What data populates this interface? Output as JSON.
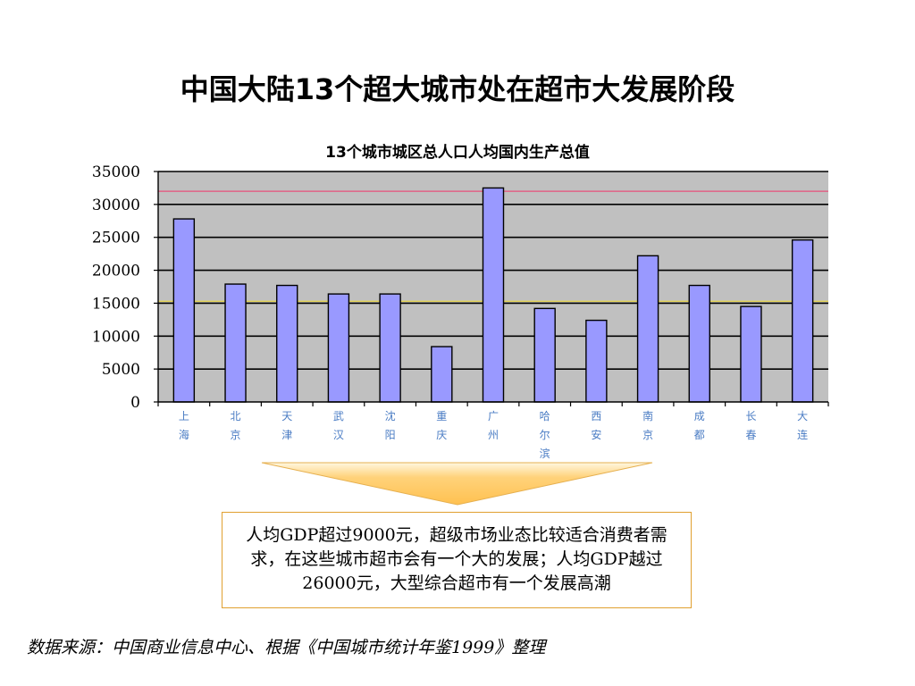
{
  "slide": {
    "title": "中国大陆13个超大城市处在超市大发展阶段",
    "callout": "人均GDP超过9000元，超级市场业态比较适合消费者需求，在这些城市超市会有一个大的发展；人均GDP越过26000元，大型综合超市有一个发展高潮",
    "source": "数据来源：中国商业信息中心、根据《中国城市统计年鉴1999》整理"
  },
  "chart_data": {
    "type": "bar",
    "title": "13个城市城区总人口人均国内生产总值",
    "categories": [
      "上海",
      "北京",
      "天津",
      "武汉",
      "沈阳",
      "重庆",
      "广州",
      "哈尔滨",
      "西安",
      "南京",
      "成都",
      "长春",
      "大连"
    ],
    "values": [
      27800,
      17900,
      17700,
      16400,
      16400,
      8400,
      32500,
      14200,
      12400,
      22200,
      17700,
      14500,
      24600
    ],
    "ylim": [
      0,
      35000
    ],
    "yticks": [
      "35000",
      "30000",
      "25000",
      "20000",
      "15000",
      "10000",
      "5000",
      "0"
    ],
    "reference_lines": [
      {
        "value": 32000,
        "color": "#e8507a"
      },
      {
        "value": 15300,
        "color": "#e8d44a"
      }
    ],
    "grid": true,
    "legend": "none",
    "colors": {
      "bar_fill": "#9999ff",
      "bar_stroke": "#000000",
      "plot_bg": "#c0c0c0",
      "category_label": "#4a7cc4",
      "arrow_fill": "#ffc966"
    }
  }
}
